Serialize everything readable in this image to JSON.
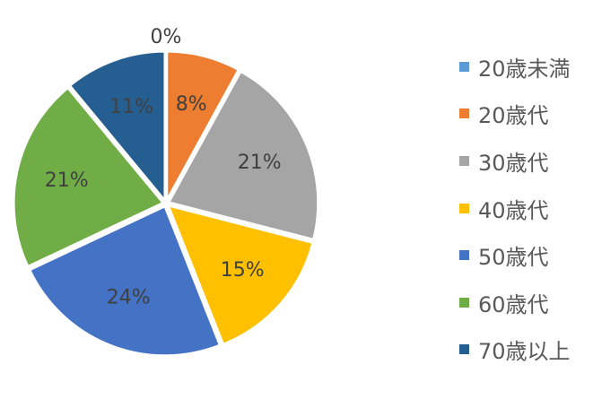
{
  "chart_data": {
    "type": "pie",
    "categories": [
      "20歳未満",
      "20歳代",
      "30歳代",
      "40歳代",
      "50歳代",
      "60歳代",
      "70歳以上"
    ],
    "values": [
      0,
      8,
      21,
      15,
      24,
      21,
      11
    ],
    "data_labels": [
      "0%",
      "8%",
      "21%",
      "15%",
      "24%",
      "21%",
      "11%"
    ],
    "colors": [
      "#5B9BD5",
      "#ED7D31",
      "#A5A5A5",
      "#FFC000",
      "#4472C4",
      "#70AD47",
      "#255E91"
    ],
    "legend": "right",
    "start_angle": "top",
    "direction": "clockwise"
  }
}
